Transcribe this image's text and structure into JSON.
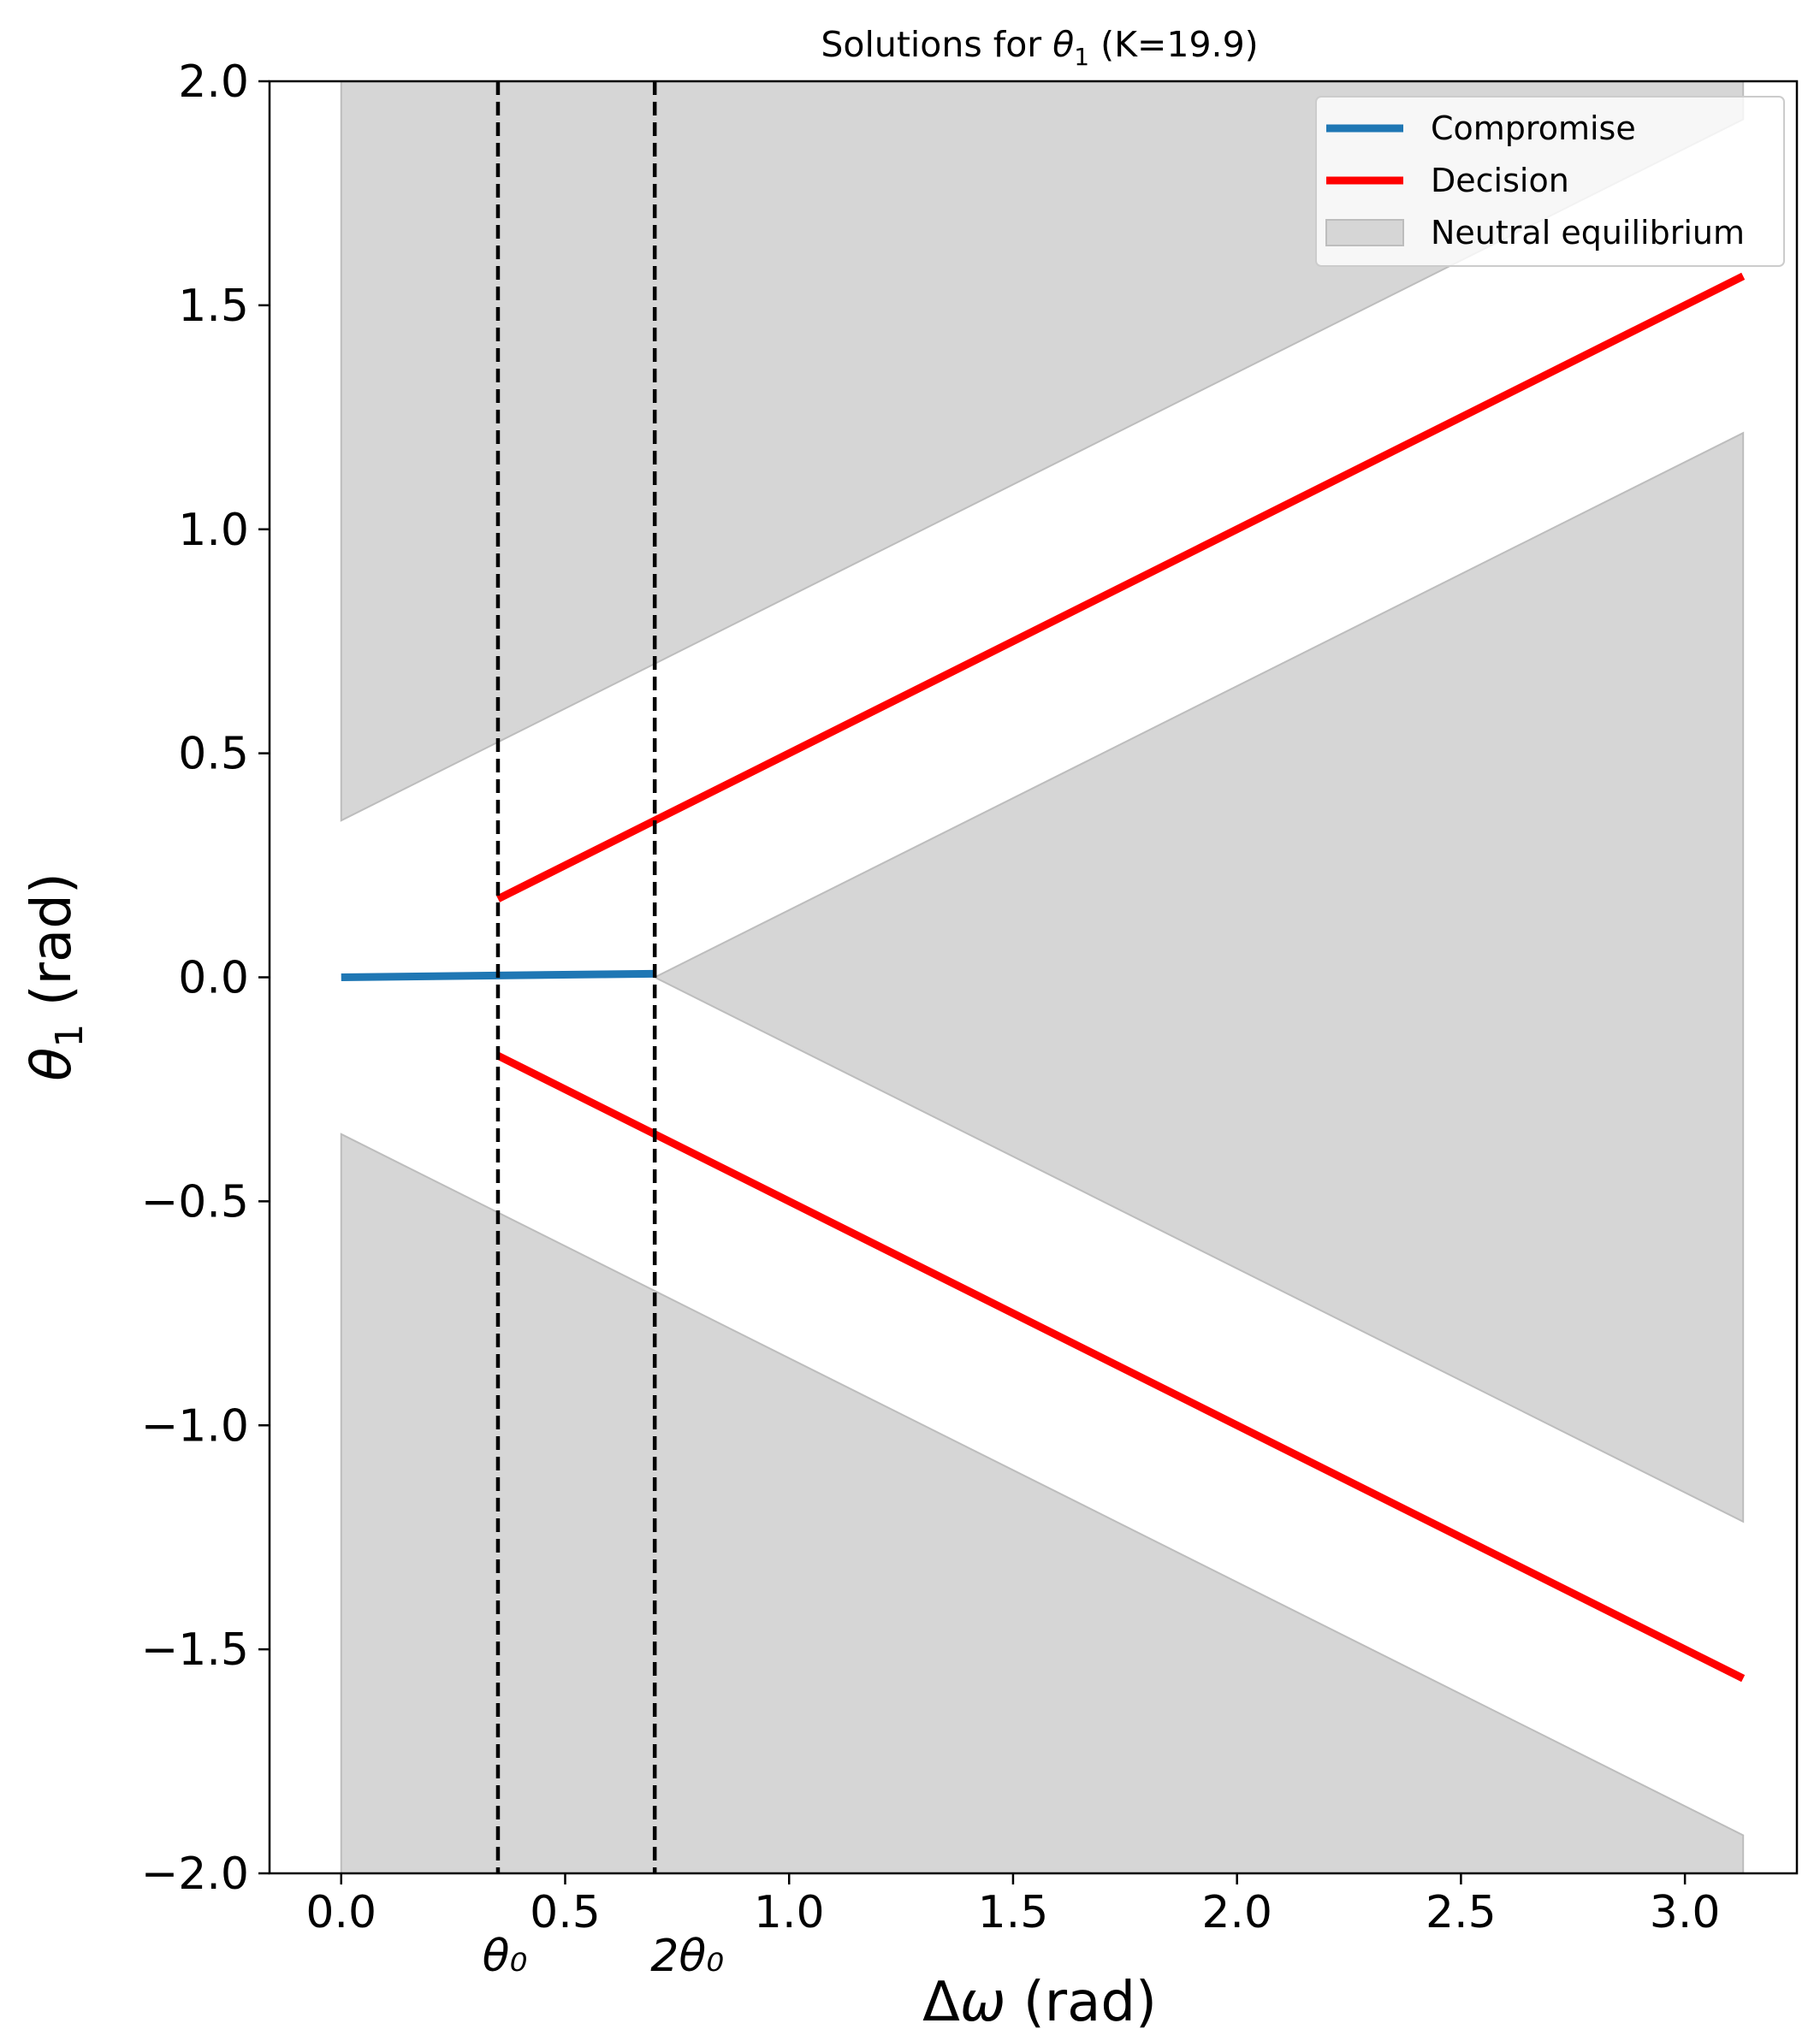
{
  "chart_data": {
    "type": "line",
    "title": "Solutions for θ₁ (K=19.9)",
    "xlabel": "Δω (rad)",
    "ylabel": "θ₁ (rad)",
    "xlim": [
      -0.16,
      3.25
    ],
    "ylim": [
      -2.0,
      2.0
    ],
    "xticks": [
      0.0,
      0.5,
      1.0,
      1.5,
      2.0,
      2.5,
      3.0
    ],
    "xtick_labels": [
      "0.0",
      "0.5",
      "1.0",
      "1.5",
      "2.0",
      "2.5",
      "3.0"
    ],
    "yticks": [
      2.0,
      1.5,
      1.0,
      0.5,
      0.0,
      -0.5,
      -1.0,
      -1.5,
      -2.0
    ],
    "ytick_labels": [
      "2.0",
      "1.5",
      "1.0",
      "0.5",
      "0.0",
      "−0.5",
      "−1.0",
      "−1.5",
      "−2.0"
    ],
    "grid": false,
    "legend_position": "top-right",
    "series": [
      {
        "name": "Compromise",
        "color": "#1f77b4",
        "segments": [
          [
            [
              0.0,
              0.0
            ],
            [
              0.7,
              0.008
            ]
          ]
        ]
      },
      {
        "name": "Decision",
        "color": "#ff0000",
        "segments": [
          [
            [
              0.35,
              0.175
            ],
            [
              3.13,
              1.565
            ]
          ],
          [
            [
              0.35,
              -0.175
            ],
            [
              3.13,
              -1.565
            ]
          ]
        ]
      }
    ],
    "fill_regions": [
      {
        "name": "Neutral equilibrium",
        "color": "#d6d6d6",
        "edge_color": "#bdbdbd",
        "polygons": [
          [
            [
              0.0,
              0.35
            ],
            [
              3.13,
              1.915
            ],
            [
              3.13,
              2.0
            ],
            [
              0.0,
              2.0
            ]
          ],
          [
            [
              0.0,
              -0.35
            ],
            [
              3.13,
              -1.915
            ],
            [
              3.13,
              -2.0
            ],
            [
              0.0,
              -2.0
            ]
          ],
          [
            [
              0.7,
              0.0
            ],
            [
              3.13,
              1.215
            ],
            [
              3.13,
              -1.215
            ]
          ]
        ]
      }
    ],
    "vlines": [
      {
        "x": 0.35,
        "label": "θ₀",
        "style": "dashed"
      },
      {
        "x": 0.7,
        "label": "2θ₀",
        "style": "dashed"
      }
    ],
    "legend": [
      {
        "label": "Compromise",
        "kind": "line",
        "color": "#1f77b4"
      },
      {
        "label": "Decision",
        "kind": "line",
        "color": "#ff0000"
      },
      {
        "label": "Neutral equilibrium",
        "kind": "patch",
        "color": "#d6d6d6"
      }
    ]
  }
}
